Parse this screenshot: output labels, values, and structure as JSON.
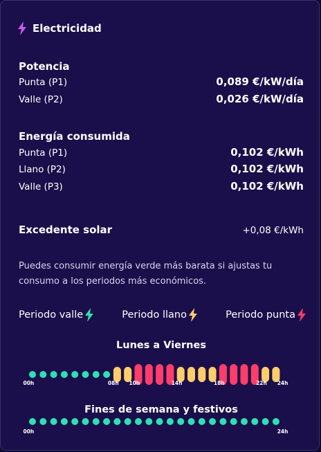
{
  "header": {
    "title": "Electricidad",
    "icon": "bolt-icon",
    "icon_color": "#c45cf0"
  },
  "potencia": {
    "title": "Potencia",
    "rows": [
      {
        "label": "Punta (P1)",
        "value": "0,089 €/kW/día"
      },
      {
        "label": "Valle (P2)",
        "value": "0,026 €/kW/día"
      }
    ]
  },
  "energia": {
    "title": "Energía consumida",
    "rows": [
      {
        "label": "Punta (P1)",
        "value": "0,102 €/kWh"
      },
      {
        "label": "Llano (P2)",
        "value": "0,102 €/kWh"
      },
      {
        "label": "Valle (P3)",
        "value": "0,102 €/kWh"
      }
    ]
  },
  "solar": {
    "label": "Excedente solar",
    "value": "+0,08 €/kWh"
  },
  "note": "Puedes consumir energía verde más barata si ajustas tu consumo a los periodos más económicos.",
  "legend": [
    {
      "label": "Periodo valle",
      "color": "#2fe0b4",
      "icon": "bolt-icon"
    },
    {
      "label": "Periodo llano",
      "color": "#ffcd6a",
      "icon": "bolt-icon"
    },
    {
      "label": "Periodo punta",
      "color": "#ff3d6b",
      "icon": "bolt-icon"
    }
  ],
  "colors": {
    "valle": "#2fe0b4",
    "llano": "#ffcd6a",
    "punta": "#ff3d6b"
  },
  "weekday": {
    "title": "Lunes a Viernes",
    "hours": [
      "valle",
      "valle",
      "valle",
      "valle",
      "valle",
      "valle",
      "valle",
      "valle",
      "llano",
      "llano",
      "punta",
      "punta",
      "punta",
      "punta",
      "llano",
      "llano",
      "llano",
      "llano",
      "punta",
      "punta",
      "punta",
      "punta",
      "llano",
      "llano"
    ],
    "ticks": [
      {
        "hour": 0,
        "label": "00h"
      },
      {
        "hour": 8,
        "label": "08h"
      },
      {
        "hour": 10,
        "label": "10h"
      },
      {
        "hour": 14,
        "label": "14h"
      },
      {
        "hour": 18,
        "label": "18h"
      },
      {
        "hour": 22,
        "label": "22h"
      },
      {
        "hour": 24,
        "label": "24h"
      }
    ]
  },
  "weekend": {
    "title": "Fines de semana y festivos",
    "hours": [
      "valle",
      "valle",
      "valle",
      "valle",
      "valle",
      "valle",
      "valle",
      "valle",
      "valle",
      "valle",
      "valle",
      "valle",
      "valle",
      "valle",
      "valle",
      "valle",
      "valle",
      "valle",
      "valle",
      "valle",
      "valle",
      "valle",
      "valle",
      "valle"
    ],
    "ticks": [
      {
        "hour": 0,
        "label": "00h"
      },
      {
        "hour": 24,
        "label": "24h"
      }
    ]
  }
}
